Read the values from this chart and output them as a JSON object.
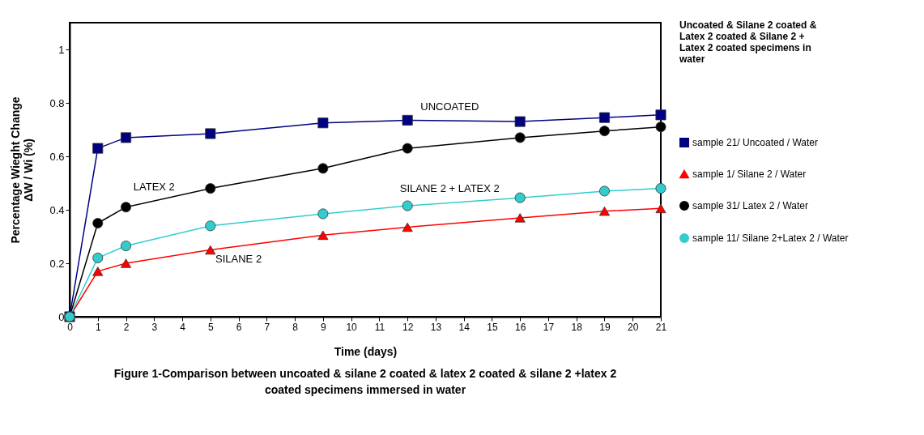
{
  "chart_data": {
    "type": "line",
    "title": "Uncoated & Silane 2 coated & Latex 2 coated & Silane 2 + Latex 2 coated specimens in water",
    "xlabel": "Time (days)",
    "ylabel": "Percentage Wieght Change ΔW / Wi (%)",
    "x": [
      0,
      1,
      2,
      5,
      9,
      12,
      16,
      19,
      21
    ],
    "series": [
      {
        "name": "sample 21/ Uncoated  / Water",
        "color": "#000080",
        "marker": "square",
        "values": [
          0,
          0.63,
          0.67,
          0.685,
          0.725,
          0.735,
          0.73,
          0.745,
          0.755
        ]
      },
      {
        "name": "sample 1/ Silane 2 / Water",
        "color": "#ff0000",
        "marker": "triangle",
        "values": [
          0,
          0.17,
          0.2,
          0.25,
          0.305,
          0.335,
          0.37,
          0.395,
          0.405
        ]
      },
      {
        "name": "sample 31/ Latex 2 / Water",
        "color": "#000000",
        "marker": "circle",
        "values": [
          0,
          0.35,
          0.41,
          0.48,
          0.555,
          0.63,
          0.67,
          0.695,
          0.71
        ]
      },
      {
        "name": "sample 11/ Silane 2+Latex 2 / Water",
        "color": "#33cccc",
        "marker": "circle",
        "values": [
          0,
          0.22,
          0.265,
          0.34,
          0.385,
          0.415,
          0.445,
          0.47,
          0.48
        ]
      }
    ],
    "xlim": [
      0,
      21
    ],
    "xticks": [
      0,
      1,
      2,
      3,
      4,
      5,
      6,
      7,
      8,
      9,
      10,
      11,
      12,
      13,
      14,
      15,
      16,
      17,
      18,
      19,
      20,
      21
    ],
    "ylim": [
      0,
      1.1
    ],
    "yticks": [
      0,
      0.2,
      0.4,
      0.6,
      0.8,
      1
    ],
    "data_labels": false,
    "grid": false,
    "legend": "right",
    "annotations": [
      {
        "text": "UNCOATED",
        "x": 13.5,
        "y": 0.733
      },
      {
        "text": "LATEX 2",
        "x": 3,
        "y": 0.433
      },
      {
        "text": "SILANE 2 + LATEX 2",
        "x": 13.5,
        "y": 0.426
      },
      {
        "text": "SILANE 2",
        "x": 6,
        "y": 0.264
      },
      "Figure 1-Comparison between uncoated & silane 2 coated & latex 2 coated & silane 2 +latex 2 coated specimens immersed in water"
    ]
  }
}
